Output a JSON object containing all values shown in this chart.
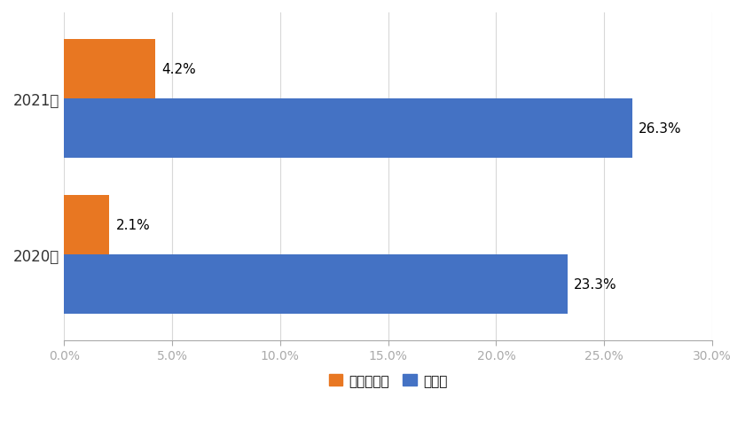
{
  "categories": [
    "2021年",
    "2020年"
  ],
  "telework_values": [
    4.2,
    2.1
  ],
  "corona_values": [
    26.3,
    23.3
  ],
  "telework_color": "#E87722",
  "corona_color": "#4472C4",
  "telework_label": "テレワーク",
  "corona_label": "コロナ",
  "xlim": [
    0,
    30
  ],
  "xtick_labels": [
    "0.0%",
    "5.0%",
    "10.0%",
    "15.0%",
    "20.0%",
    "25.0%",
    "30.0%"
  ],
  "xtick_vals": [
    0,
    5,
    10,
    15,
    20,
    25,
    30
  ],
  "bar_height": 0.38,
  "background_color": "#ffffff",
  "label_fontsize": 11,
  "ytick_fontsize": 12,
  "xtick_fontsize": 10,
  "legend_fontsize": 11
}
